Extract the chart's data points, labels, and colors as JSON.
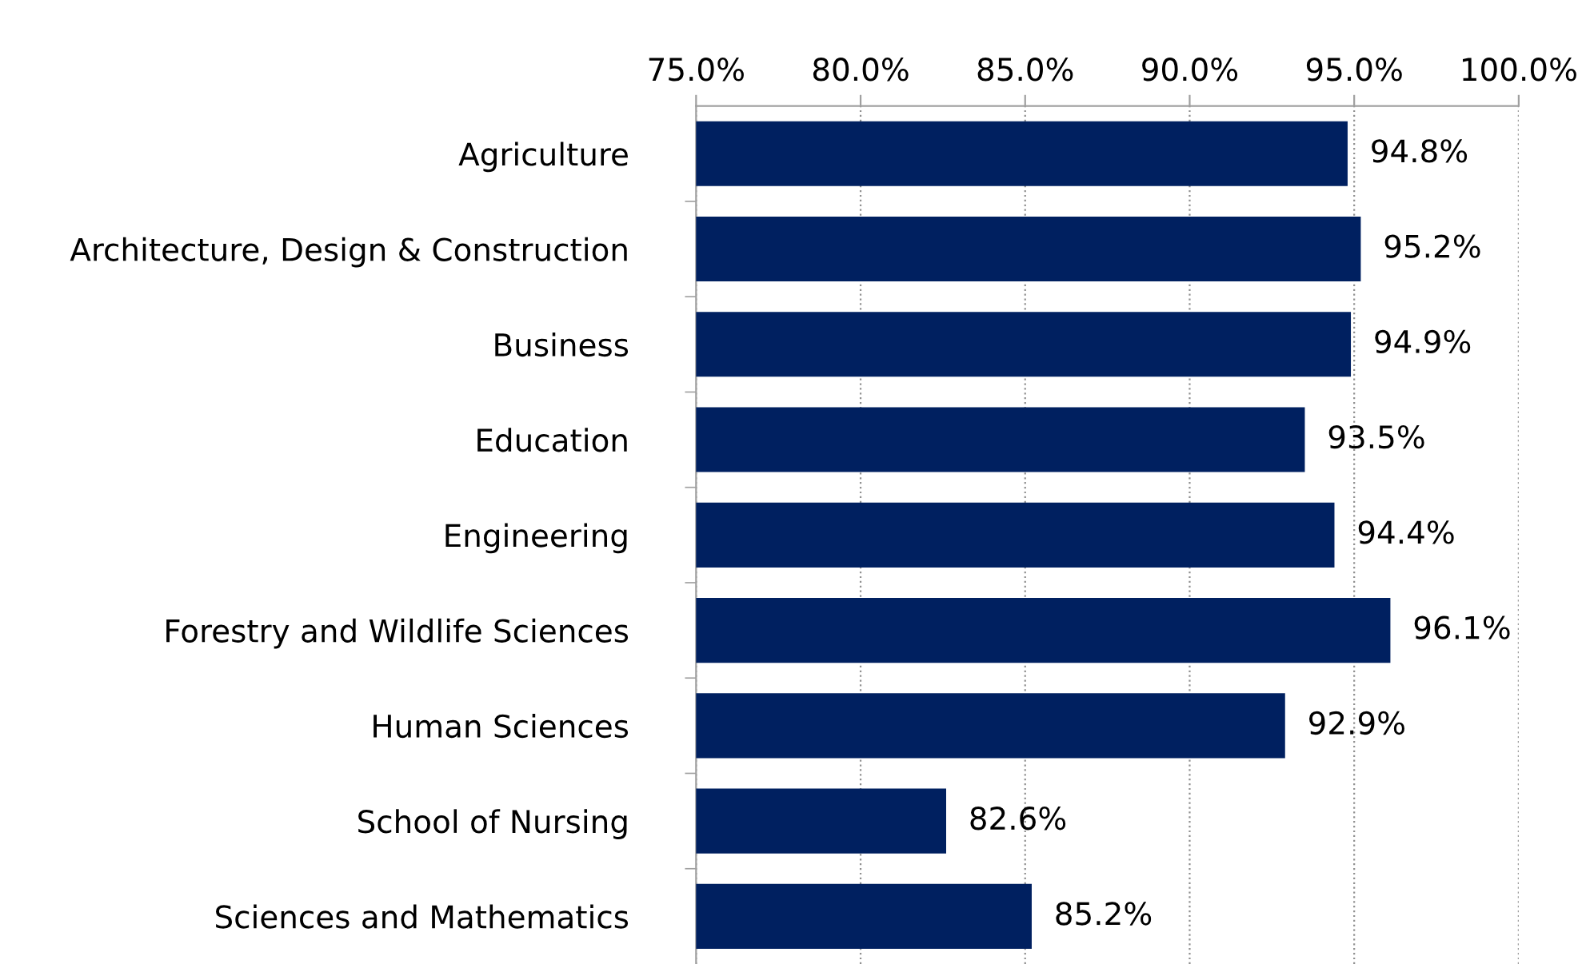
{
  "chart_data": {
    "type": "bar",
    "orientation": "horizontal",
    "categories": [
      "Agriculture",
      "Architecture, Design & Construction",
      "Business",
      "Education",
      "Engineering",
      "Forestry and Wildlife Sciences",
      "Human Sciences",
      "School of Nursing",
      "Sciences and Mathematics"
    ],
    "values": [
      94.8,
      95.2,
      94.9,
      93.5,
      94.4,
      96.1,
      92.9,
      82.6,
      85.2
    ],
    "value_labels": [
      "94.8%",
      "95.2%",
      "94.9%",
      "93.5%",
      "94.4%",
      "96.1%",
      "92.9%",
      "82.6%",
      "85.2%"
    ],
    "color": "#002060",
    "xlim": [
      75,
      100
    ],
    "xticks": [
      {
        "value": 75,
        "label": "75.0%"
      },
      {
        "value": 80,
        "label": "80.0%"
      },
      {
        "value": 85,
        "label": "85.0%"
      },
      {
        "value": 90,
        "label": "90.0%"
      },
      {
        "value": 95,
        "label": "95.0%"
      },
      {
        "value": 100,
        "label": "100.0%"
      }
    ],
    "grid": "x"
  }
}
